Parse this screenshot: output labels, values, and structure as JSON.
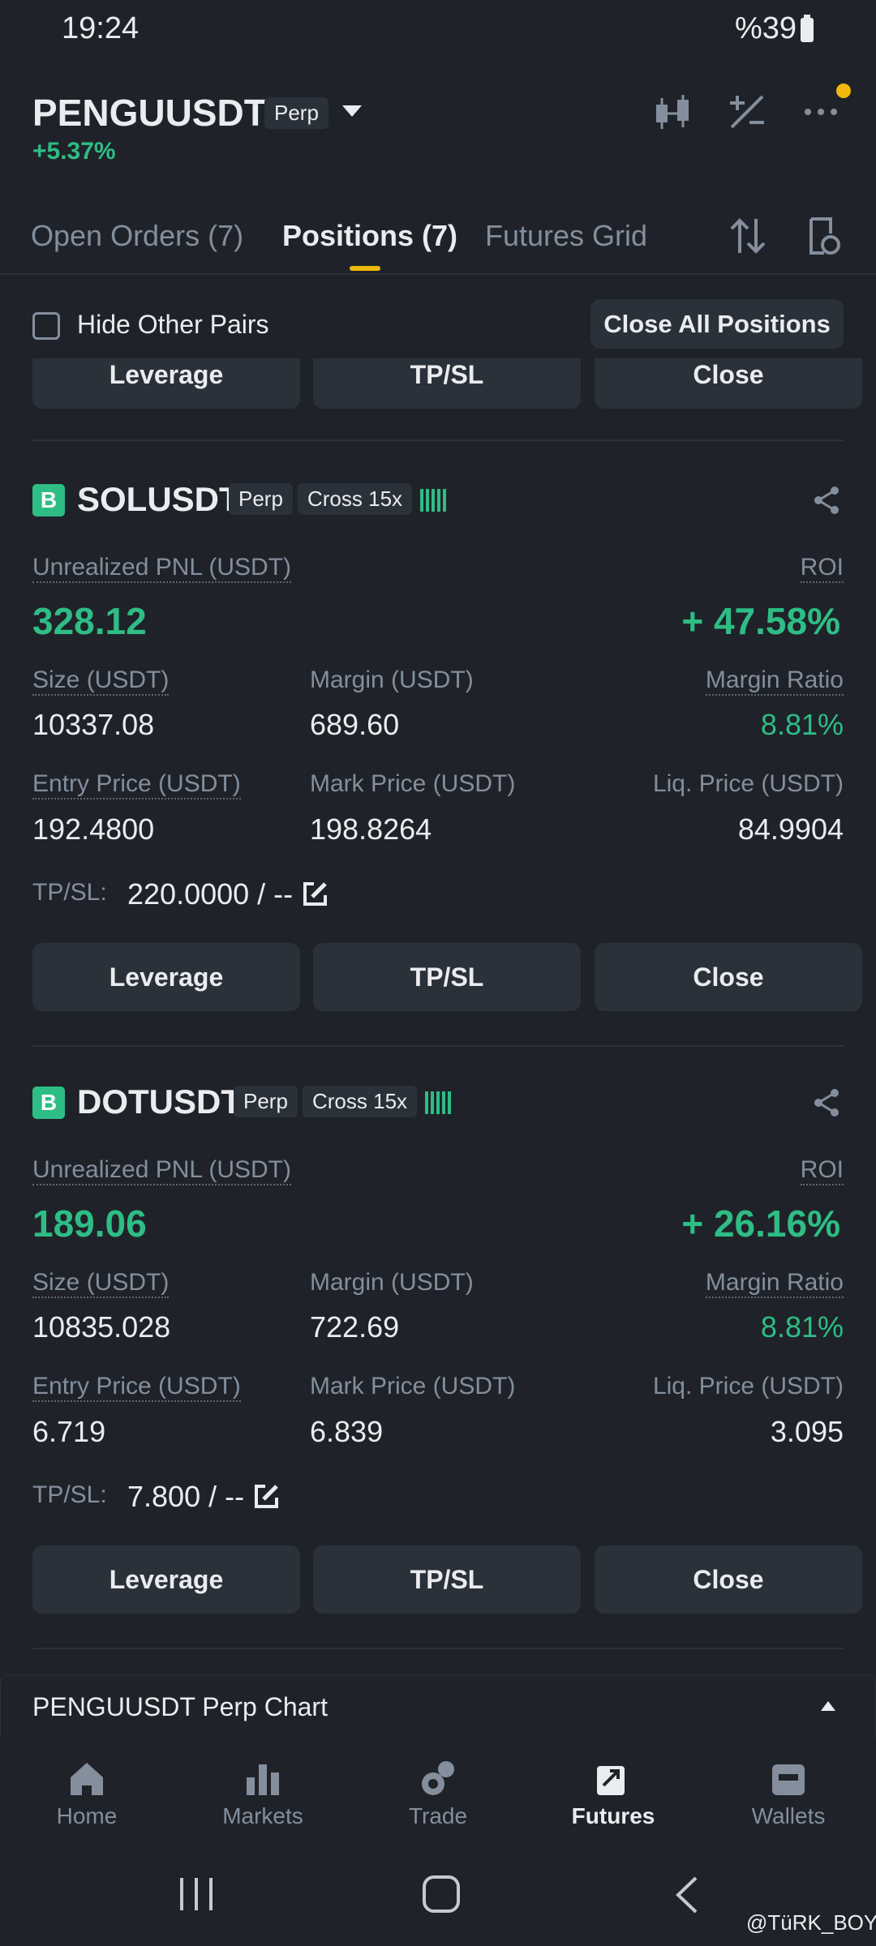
{
  "status_bar": {
    "time": "19:24",
    "battery": "%39"
  },
  "header": {
    "symbol": "PENGUUSDT",
    "badge": "Perp",
    "change": "+5.37%"
  },
  "tabs": [
    "Open Orders (7)",
    "Positions (7)",
    "Futures Grid"
  ],
  "filter": {
    "checkbox_label": "Hide Other Pairs",
    "button": "Close All Positions"
  },
  "partial_buttons": [
    "Leverage",
    "TP/SL",
    "Close"
  ],
  "positions": [
    {
      "side": "B",
      "symbol": "SOLUSDT",
      "type": "Perp",
      "margin_mode": "Cross 15x",
      "pnl_label": "Unrealized PNL (USDT)",
      "pnl": "328.12",
      "roi_label": "ROI",
      "roi": "+ 47.58%",
      "fields": [
        {
          "label": "Size (USDT)",
          "value": "10337.08"
        },
        {
          "label": "Margin (USDT)",
          "value": "689.60"
        },
        {
          "label": "Margin Ratio",
          "value": "8.81%"
        },
        {
          "label": "Entry Price (USDT)",
          "value": "192.4800"
        },
        {
          "label": "Mark Price (USDT)",
          "value": "198.8264"
        },
        {
          "label": "Liq. Price (USDT)",
          "value": "84.9904"
        }
      ],
      "tpsl_label": "TP/SL:",
      "tpsl": "220.0000 / --",
      "buttons": [
        "Leverage",
        "TP/SL",
        "Close"
      ]
    },
    {
      "side": "B",
      "symbol": "DOTUSDT",
      "type": "Perp",
      "margin_mode": "Cross 15x",
      "pnl_label": "Unrealized PNL (USDT)",
      "pnl": "189.06",
      "roi_label": "ROI",
      "roi": "+ 26.16%",
      "fields": [
        {
          "label": "Size (USDT)",
          "value": "10835.028"
        },
        {
          "label": "Margin (USDT)",
          "value": "722.69"
        },
        {
          "label": "Margin Ratio",
          "value": "8.81%"
        },
        {
          "label": "Entry Price (USDT)",
          "value": "6.719"
        },
        {
          "label": "Mark Price (USDT)",
          "value": "6.839"
        },
        {
          "label": "Liq. Price (USDT)",
          "value": "3.095"
        }
      ],
      "tpsl_label": "TP/SL:",
      "tpsl": "7.800 / --",
      "buttons": [
        "Leverage",
        "TP/SL",
        "Close"
      ]
    }
  ],
  "chart_bar": {
    "title": "PENGUUSDT Perp Chart"
  },
  "bottom_nav": [
    "Home",
    "Markets",
    "Trade",
    "Futures",
    "Wallets"
  ],
  "watermark": "@TüRK_BOY"
}
